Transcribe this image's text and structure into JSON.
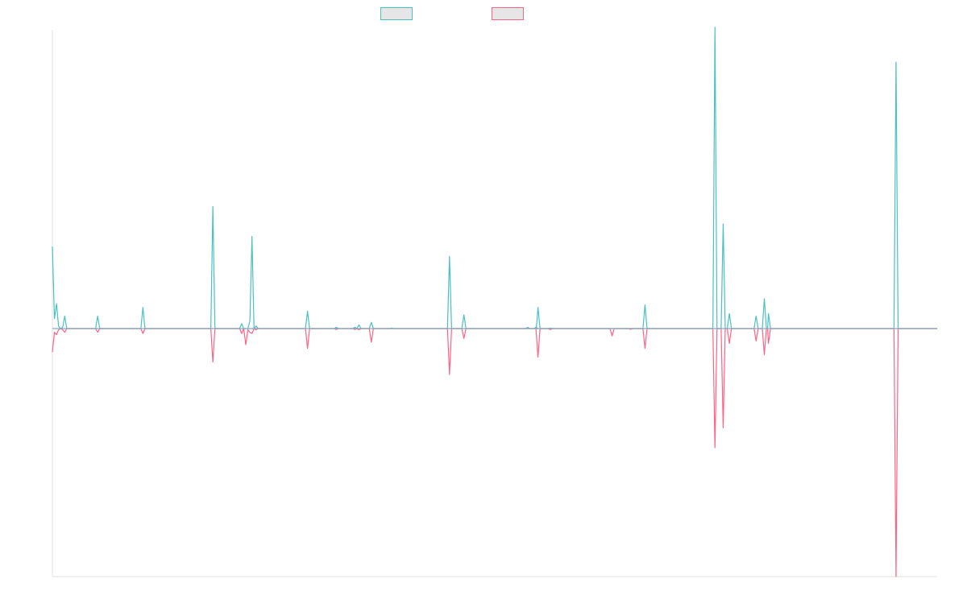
{
  "chart_data": {
    "type": "line",
    "title": "",
    "xlabel": "",
    "ylabel": "",
    "legend_position": "top",
    "grid": false,
    "ylim": [
      -1,
      1.2
    ],
    "series": [
      {
        "name": "",
        "color": "#4bc0c0",
        "points": [
          [
            0,
            0.33
          ],
          [
            0.5,
            0.04
          ],
          [
            1,
            0.1
          ],
          [
            1.5,
            0.01
          ],
          [
            2,
            0
          ],
          [
            2.5,
            0.005
          ],
          [
            3,
            0.05
          ],
          [
            3.5,
            0
          ],
          [
            10.5,
            0
          ],
          [
            11,
            0.05
          ],
          [
            11.5,
            0
          ],
          [
            21.5,
            0
          ],
          [
            22,
            0.085
          ],
          [
            22.5,
            0
          ],
          [
            38.5,
            0
          ],
          [
            39,
            0.49
          ],
          [
            39.5,
            0
          ],
          [
            45.5,
            0
          ],
          [
            46,
            0.02
          ],
          [
            46.5,
            0
          ],
          [
            47.5,
            0
          ],
          [
            48,
            0.03
          ],
          [
            48.5,
            0.37
          ],
          [
            49,
            0
          ],
          [
            49.5,
            0.01
          ],
          [
            50,
            0
          ],
          [
            61.5,
            0
          ],
          [
            62,
            0.07
          ],
          [
            62.5,
            0
          ],
          [
            68.5,
            0
          ],
          [
            69,
            0.005
          ],
          [
            69.5,
            0
          ],
          [
            73,
            0
          ],
          [
            73.5,
            0.005
          ],
          [
            74,
            0
          ],
          [
            74.5,
            0.015
          ],
          [
            75,
            0
          ],
          [
            77,
            0
          ],
          [
            77.5,
            0.025
          ],
          [
            78,
            0
          ],
          [
            82,
            0
          ],
          [
            82.5,
            0.002
          ],
          [
            83,
            0
          ],
          [
            96,
            0
          ],
          [
            96.5,
            0.29
          ],
          [
            97,
            0
          ],
          [
            99.5,
            0
          ],
          [
            100,
            0.055
          ],
          [
            100.5,
            0
          ],
          [
            115,
            0
          ],
          [
            115.5,
            0.005
          ],
          [
            116,
            0
          ],
          [
            117,
            0
          ],
          [
            117.5,
            0.005
          ],
          [
            118,
            0
          ],
          [
            117.6,
            0
          ],
          [
            118,
            0.085
          ],
          [
            118.5,
            0
          ],
          [
            120.5,
            0
          ],
          [
            121,
            0.002
          ],
          [
            121.5,
            0
          ],
          [
            143.5,
            0
          ],
          [
            144,
            0.095
          ],
          [
            144.5,
            0
          ],
          [
            160.5,
            0
          ],
          [
            161,
            1.21
          ],
          [
            161.5,
            0
          ],
          [
            162.5,
            0
          ],
          [
            163,
            0.42
          ],
          [
            163.5,
            0
          ],
          [
            164,
            0
          ],
          [
            164.5,
            0.06
          ],
          [
            165,
            0
          ],
          [
            170.5,
            0
          ],
          [
            171,
            0.05
          ],
          [
            171.5,
            0
          ],
          [
            172.5,
            0
          ],
          [
            173,
            0.12
          ],
          [
            173.5,
            0
          ],
          [
            173.8,
            0
          ],
          [
            174,
            0.06
          ],
          [
            174.5,
            0
          ],
          [
            204.5,
            0
          ],
          [
            205,
            1.07
          ],
          [
            205.5,
            0
          ],
          [
            215,
            0
          ]
        ]
      },
      {
        "name": "",
        "color": "#ff6384",
        "points": [
          [
            0,
            -0.095
          ],
          [
            0.5,
            -0.015
          ],
          [
            1,
            -0.025
          ],
          [
            1.5,
            -0.005
          ],
          [
            2,
            0
          ],
          [
            2.5,
            -0.005
          ],
          [
            3,
            -0.015
          ],
          [
            3.5,
            0
          ],
          [
            10.5,
            0
          ],
          [
            11,
            -0.015
          ],
          [
            11.5,
            0
          ],
          [
            21.5,
            0
          ],
          [
            22,
            -0.02
          ],
          [
            22.5,
            0
          ],
          [
            38.5,
            0
          ],
          [
            39,
            -0.135
          ],
          [
            39.5,
            0
          ],
          [
            45.5,
            0
          ],
          [
            46,
            -0.02
          ],
          [
            46.5,
            0
          ],
          [
            47,
            -0.065
          ],
          [
            47.5,
            -0.005
          ],
          [
            48,
            -0.015
          ],
          [
            48.5,
            -0.02
          ],
          [
            49,
            0
          ],
          [
            49.5,
            -0.005
          ],
          [
            50,
            0
          ],
          [
            61.5,
            0
          ],
          [
            62,
            -0.08
          ],
          [
            62.5,
            0
          ],
          [
            68.5,
            0
          ],
          [
            69,
            -0.004
          ],
          [
            69.5,
            0
          ],
          [
            73,
            0
          ],
          [
            73.5,
            -0.004
          ],
          [
            74,
            0
          ],
          [
            74.5,
            -0.005
          ],
          [
            75,
            0
          ],
          [
            77,
            0
          ],
          [
            77.5,
            -0.055
          ],
          [
            78,
            0
          ],
          [
            96,
            0
          ],
          [
            96.5,
            -0.185
          ],
          [
            97,
            0
          ],
          [
            99.5,
            0
          ],
          [
            100,
            -0.04
          ],
          [
            100.5,
            0
          ],
          [
            117.5,
            0
          ],
          [
            118,
            -0.115
          ],
          [
            118.5,
            0
          ],
          [
            120.5,
            0
          ],
          [
            121,
            -0.004
          ],
          [
            121.5,
            0
          ],
          [
            135.5,
            0
          ],
          [
            136,
            -0.03
          ],
          [
            136.5,
            0
          ],
          [
            140,
            0
          ],
          [
            140.5,
            -0.003
          ],
          [
            141,
            0
          ],
          [
            143.5,
            0
          ],
          [
            144,
            -0.08
          ],
          [
            144.5,
            0
          ],
          [
            160.5,
            0
          ],
          [
            161,
            -0.48
          ],
          [
            161.5,
            0
          ],
          [
            162.5,
            0
          ],
          [
            163,
            -0.4
          ],
          [
            163.5,
            0
          ],
          [
            164,
            0
          ],
          [
            164.5,
            -0.06
          ],
          [
            165,
            0
          ],
          [
            170.5,
            0
          ],
          [
            171,
            -0.05
          ],
          [
            171.5,
            0
          ],
          [
            172.5,
            0
          ],
          [
            173,
            -0.105
          ],
          [
            173.5,
            0
          ],
          [
            173.8,
            0
          ],
          [
            174,
            -0.06
          ],
          [
            174.5,
            0
          ],
          [
            204.5,
            0
          ],
          [
            205,
            -1.0
          ],
          [
            205.5,
            0
          ],
          [
            215,
            0
          ]
        ]
      }
    ]
  }
}
